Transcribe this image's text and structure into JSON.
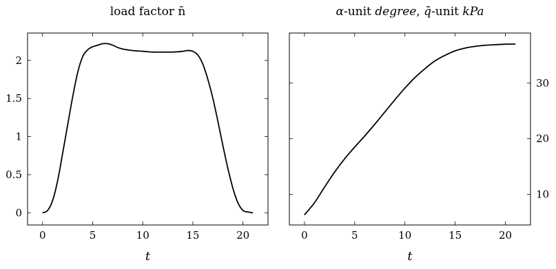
{
  "chart_data": [
    {
      "type": "line",
      "title": "load factor n̄",
      "xlabel": "t",
      "ylabel": "",
      "xlim": [
        -1.5,
        22.5
      ],
      "ylim": [
        -0.16,
        2.36
      ],
      "x_ticks": [
        0,
        5,
        10,
        15,
        20
      ],
      "x_tick_labels": [
        "0",
        "5",
        "10",
        "15",
        "20"
      ],
      "y_ticks": [
        0,
        0.5,
        1,
        1.5,
        2
      ],
      "y_tick_labels": [
        "0",
        "0.5",
        "1",
        "1.5",
        "2"
      ],
      "y_axis_side": "left",
      "grid": false,
      "series": [
        {
          "color": "#000000",
          "x": [
            0,
            0.5,
            1,
            1.5,
            2,
            2.5,
            3,
            3.5,
            4,
            4.5,
            5,
            5.5,
            6,
            6.5,
            7,
            7.5,
            8,
            9,
            10,
            11,
            12,
            13,
            14,
            14.5,
            15,
            15.5,
            16,
            16.5,
            17,
            17.5,
            18,
            18.5,
            19,
            19.5,
            20,
            20.5,
            21
          ],
          "y": [
            0,
            0.03,
            0.16,
            0.42,
            0.78,
            1.15,
            1.52,
            1.84,
            2.05,
            2.14,
            2.18,
            2.2,
            2.22,
            2.22,
            2.2,
            2.17,
            2.15,
            2.13,
            2.12,
            2.11,
            2.11,
            2.11,
            2.12,
            2.13,
            2.12,
            2.07,
            1.95,
            1.75,
            1.5,
            1.2,
            0.88,
            0.58,
            0.32,
            0.13,
            0.03,
            0.01,
            0
          ]
        }
      ]
    },
    {
      "type": "line",
      "title": "α-unit degree, q̄-unit kPa",
      "title_parts": [
        "α",
        "-unit ",
        "degree",
        ", ",
        "q̄",
        "-unit ",
        "kPa"
      ],
      "xlabel": "t",
      "ylabel": "",
      "xlim": [
        -1.5,
        22.5
      ],
      "ylim": [
        4.5,
        39
      ],
      "x_ticks": [
        0,
        5,
        10,
        15,
        20
      ],
      "x_tick_labels": [
        "0",
        "5",
        "10",
        "15",
        "20"
      ],
      "y_ticks": [
        10,
        20,
        30
      ],
      "y_tick_labels": [
        "10",
        "20",
        "30"
      ],
      "y_axis_side": "right",
      "grid": false,
      "series": [
        {
          "color": "#000000",
          "x": [
            0,
            1,
            2,
            3,
            4,
            5,
            6,
            7,
            8,
            9,
            10,
            11,
            12,
            13,
            14,
            15,
            16,
            17,
            18,
            19,
            20,
            21
          ],
          "y": [
            6.3,
            8.5,
            11.3,
            14.0,
            16.4,
            18.5,
            20.5,
            22.6,
            24.8,
            27.0,
            29.1,
            31.0,
            32.6,
            34.0,
            35.0,
            35.8,
            36.3,
            36.6,
            36.8,
            36.9,
            37.0,
            37.0
          ]
        }
      ]
    }
  ]
}
